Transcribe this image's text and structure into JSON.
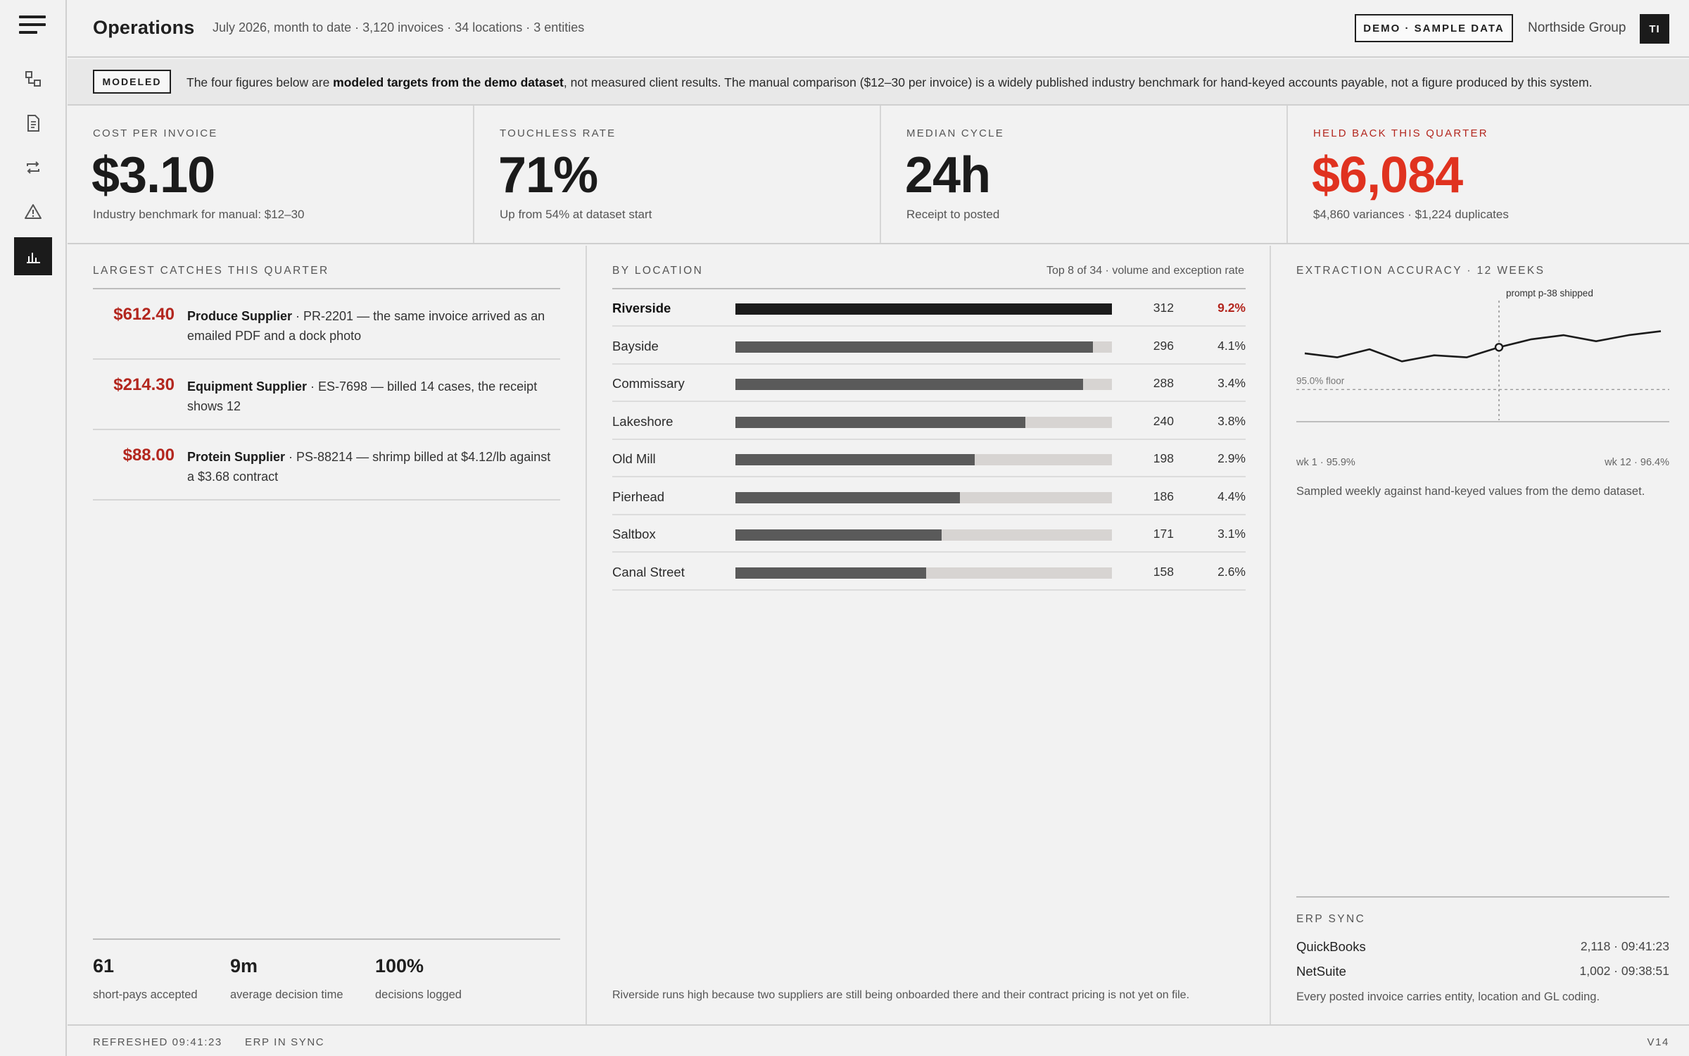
{
  "rail": {
    "items": [
      {
        "icon": "flow-icon",
        "active": false
      },
      {
        "icon": "document-icon",
        "active": false
      },
      {
        "icon": "sync-icon",
        "active": false
      },
      {
        "icon": "warning-icon",
        "active": false
      },
      {
        "icon": "chart-icon",
        "active": true
      }
    ]
  },
  "header": {
    "title": "Operations",
    "subtitle": "July 2026, month to date · 3,120 invoices · 34 locations · 3 entities",
    "demo_badge": "DEMO · SAMPLE DATA",
    "org": "Northside Group",
    "avatar": "TI"
  },
  "notice": {
    "tag": "MODELED",
    "text_before": "The four figures below are ",
    "text_bold": "modeled targets from the demo dataset",
    "text_after": ", not measured client results. The manual comparison ($12–30 per invoice) is a widely published industry benchmark for hand-keyed accounts payable, not a figure produced by this system."
  },
  "kpis": [
    {
      "label": "COST PER INVOICE",
      "value": "$3.10",
      "note": "Industry benchmark for manual: $12–30",
      "alert": false
    },
    {
      "label": "TOUCHLESS RATE",
      "value": "71%",
      "note": "Up from 54% at dataset start",
      "alert": false
    },
    {
      "label": "MEDIAN CYCLE",
      "value": "24h",
      "note": "Receipt to posted",
      "alert": false
    },
    {
      "label": "HELD BACK THIS QUARTER",
      "value": "$6,084",
      "note": "$4,860 variances · $1,224 duplicates",
      "alert": true
    }
  ],
  "catches": {
    "label": "LARGEST CATCHES THIS QUARTER",
    "items": [
      {
        "amount": "$612.40",
        "supplier": "Produce Supplier",
        "detail": " · PR-2201 — the same invoice arrived as an emailed PDF and a dock photo"
      },
      {
        "amount": "$214.30",
        "supplier": "Equipment Supplier",
        "detail": " · ES-7698 — billed 14 cases, the receipt shows 12"
      },
      {
        "amount": "$88.00",
        "supplier": "Protein Supplier",
        "detail": " · PS-88214 — shrimp billed at $4.12/lb against a $3.68 contract"
      }
    ],
    "stats": [
      {
        "num": "61",
        "cap": "short-pays accepted"
      },
      {
        "num": "9m",
        "cap": "average decision time"
      },
      {
        "num": "100%",
        "cap": "decisions logged"
      }
    ]
  },
  "locations": {
    "label": "BY LOCATION",
    "meta": "Top 8 of 34 · volume and exception rate",
    "max_volume": 312,
    "rows": [
      {
        "name": "Riverside",
        "volume": 312,
        "rate": "9.2%",
        "top": true
      },
      {
        "name": "Bayside",
        "volume": 296,
        "rate": "4.1%",
        "top": false
      },
      {
        "name": "Commissary",
        "volume": 288,
        "rate": "3.4%",
        "top": false
      },
      {
        "name": "Lakeshore",
        "volume": 240,
        "rate": "3.8%",
        "top": false
      },
      {
        "name": "Old Mill",
        "volume": 198,
        "rate": "2.9%",
        "top": false
      },
      {
        "name": "Pierhead",
        "volume": 186,
        "rate": "4.4%",
        "top": false
      },
      {
        "name": "Saltbox",
        "volume": 171,
        "rate": "3.1%",
        "top": false
      },
      {
        "name": "Canal Street",
        "volume": 158,
        "rate": "2.6%",
        "top": false
      }
    ],
    "footnote": "Riverside runs high because two suppliers are still being onboarded there and their contract pricing is not yet on file."
  },
  "accuracy": {
    "label": "EXTRACTION ACCURACY · 12 WEEKS",
    "floor_label": "95.0% floor",
    "annotation": "prompt p-38 shipped",
    "start_label": "wk 1 · 95.9%",
    "end_label": "wk 12 · 96.4%",
    "caption": "Sampled weekly against hand-keyed values from the demo dataset."
  },
  "chart_data": {
    "type": "line",
    "title": "EXTRACTION ACCURACY · 12 WEEKS",
    "x": [
      1,
      2,
      3,
      4,
      5,
      6,
      7,
      8,
      9,
      10,
      11,
      12
    ],
    "series": [
      {
        "values": [
          95.9,
          95.8,
          96.0,
          95.7,
          95.85,
          95.8,
          96.05,
          96.25,
          96.35,
          96.2,
          96.35,
          96.45
        ]
      }
    ],
    "floor": 95.0,
    "annotation": {
      "week": 7,
      "text": "prompt p-38 shipped"
    },
    "ylim": [
      94.2,
      97.0
    ],
    "grid": false
  },
  "erp": {
    "label": "ERP SYNC",
    "rows": [
      {
        "name": "QuickBooks",
        "value": "2,118 · 09:41:23"
      },
      {
        "name": "NetSuite",
        "value": "1,002 · 09:38:51"
      }
    ],
    "note": "Every posted invoice carries entity, location and GL coding."
  },
  "status": {
    "refreshed": "REFRESHED 09:41:23",
    "erp": "ERP IN SYNC",
    "version": "V14"
  }
}
